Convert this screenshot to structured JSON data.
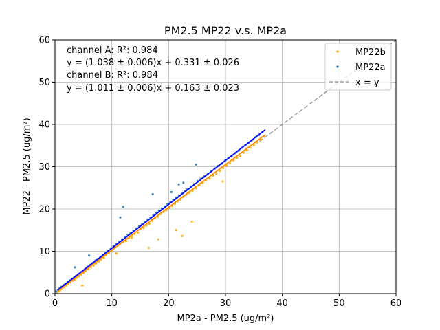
{
  "chart_data": {
    "type": "scatter",
    "title": "PM2.5 MP22 v.s. MP2a",
    "xlabel": "MP2a - PM2.5 (ug/m²)",
    "ylabel": "MP22 - PM2.5 (ug/m²)",
    "xlim": [
      0,
      60
    ],
    "ylim": [
      0,
      60
    ],
    "xticks": [
      "0",
      "10",
      "20",
      "30",
      "40",
      "50",
      "60"
    ],
    "yticks": [
      "0",
      "10",
      "20",
      "30",
      "40",
      "50",
      "60"
    ],
    "grid": true,
    "legend_position": "top-right",
    "annotations": [
      "channel A: R²: 0.984",
      "y = (1.038 ± 0.006)x + 0.331 ± 0.026",
      "channel B: R²: 0.984",
      "y = (1.011 ± 0.006)x + 0.163 ± 0.023"
    ],
    "series": [
      {
        "name": "MP22b",
        "kind": "scatter",
        "color": "#ffa500",
        "fit": {
          "slope": 1.011,
          "intercept": 0.163,
          "x_range": [
            0.5,
            37
          ],
          "color": "#ff8c00"
        },
        "x": [
          0.3,
          0.6,
          0.9,
          1.2,
          1.6,
          2.0,
          2.3,
          2.7,
          3.1,
          3.5,
          3.8,
          4.2,
          4.6,
          5.0,
          5.4,
          5.9,
          6.3,
          6.8,
          7.2,
          7.7,
          8.1,
          8.6,
          9.0,
          9.5,
          10.0,
          10.5,
          11.0,
          11.4,
          12.0,
          12.5,
          13.0,
          13.5,
          14.0,
          14.6,
          15.1,
          15.6,
          16.1,
          16.6,
          17.1,
          17.6,
          18.1,
          18.6,
          19.1,
          19.6,
          20.1,
          20.6,
          21.1,
          21.6,
          22.1,
          22.6,
          23.1,
          23.6,
          24.2,
          24.8,
          25.4,
          26.0,
          26.6,
          27.2,
          27.8,
          28.4,
          29.0,
          29.6,
          30.2,
          30.8,
          31.4,
          32.0,
          32.6,
          33.2,
          33.8,
          34.4,
          35.0,
          35.6,
          36.2,
          36.8,
          21.3,
          22.4,
          18.2,
          13.5,
          10.8,
          4.8,
          16.5,
          24.1,
          29.5
        ],
        "y": [
          0.2,
          0.5,
          0.8,
          1.1,
          1.5,
          1.9,
          2.2,
          2.6,
          3.0,
          3.3,
          3.7,
          4.1,
          4.5,
          4.9,
          5.3,
          5.8,
          6.2,
          6.6,
          7.1,
          7.6,
          8.0,
          8.5,
          9.1,
          9.6,
          10.1,
          10.8,
          11.3,
          11.6,
          12.2,
          12.4,
          13.1,
          13.2,
          14.1,
          14.4,
          15.3,
          15.5,
          16.1,
          16.5,
          17.2,
          17.8,
          18.2,
          18.8,
          19.3,
          19.7,
          20.2,
          20.7,
          21.2,
          21.8,
          22.2,
          22.9,
          23.4,
          23.8,
          24.3,
          24.9,
          25.6,
          26.2,
          26.7,
          27.2,
          27.9,
          28.3,
          29.0,
          29.7,
          30.3,
          30.8,
          31.5,
          32.1,
          32.5,
          33.3,
          33.9,
          34.5,
          35.1,
          35.7,
          36.4,
          37.1,
          15.0,
          13.6,
          12.8,
          13.6,
          9.5,
          1.9,
          10.8,
          17.0,
          26.5
        ]
      },
      {
        "name": "MP22a",
        "kind": "scatter",
        "color": "#1f77b4",
        "fit": {
          "slope": 1.038,
          "intercept": 0.331,
          "x_range": [
            0.5,
            37
          ],
          "color": "#0000ff"
        },
        "x": [
          0.2,
          0.5,
          0.8,
          1.1,
          1.5,
          1.8,
          2.2,
          2.6,
          3.0,
          3.4,
          3.7,
          4.1,
          4.5,
          4.9,
          5.3,
          5.7,
          6.2,
          6.6,
          7.1,
          7.5,
          8.0,
          8.4,
          8.9,
          9.3,
          9.8,
          10.3,
          10.8,
          11.3,
          11.8,
          12.3,
          12.8,
          13.3,
          13.8,
          14.3,
          14.8,
          15.3,
          15.8,
          16.3,
          16.8,
          17.3,
          17.8,
          18.3,
          18.8,
          19.3,
          19.8,
          20.3,
          20.8,
          21.3,
          21.8,
          22.3,
          22.8,
          23.3,
          23.9,
          24.5,
          25.1,
          25.7,
          26.3,
          26.9,
          27.5,
          28.1,
          28.7,
          29.3,
          29.9,
          30.5,
          31.1,
          31.7,
          32.3,
          32.9,
          33.5,
          34.1,
          34.7,
          35.3,
          35.9,
          36.5,
          12.0,
          11.5,
          20.5,
          21.8,
          22.6,
          3.5,
          6.0,
          17.2,
          24.8
        ],
        "y": [
          0.5,
          0.9,
          1.2,
          1.6,
          2.0,
          2.3,
          2.7,
          3.1,
          3.5,
          3.9,
          4.2,
          4.6,
          5.0,
          5.4,
          5.8,
          6.3,
          6.8,
          7.2,
          7.8,
          8.2,
          8.7,
          9.1,
          9.6,
          10.0,
          10.6,
          11.2,
          11.7,
          12.3,
          12.8,
          13.3,
          13.9,
          14.3,
          14.9,
          15.4,
          15.9,
          16.4,
          17.0,
          17.5,
          18.0,
          18.6,
          19.1,
          19.6,
          20.1,
          20.6,
          21.1,
          21.6,
          22.2,
          22.7,
          23.2,
          23.7,
          24.2,
          24.7,
          25.3,
          25.9,
          26.6,
          27.2,
          27.7,
          28.3,
          28.9,
          29.6,
          30.2,
          30.7,
          31.4,
          32.0,
          32.6,
          33.2,
          33.8,
          34.5,
          35.1,
          35.7,
          36.3,
          37.0,
          37.5,
          38.2,
          20.5,
          18.0,
          24.0,
          25.8,
          26.2,
          6.2,
          9.0,
          23.5,
          30.5
        ]
      },
      {
        "name": "x = y",
        "kind": "line",
        "color": "#a0a0a0",
        "dashed": true,
        "x": [
          36,
          60
        ],
        "y": [
          36,
          60
        ]
      }
    ]
  }
}
